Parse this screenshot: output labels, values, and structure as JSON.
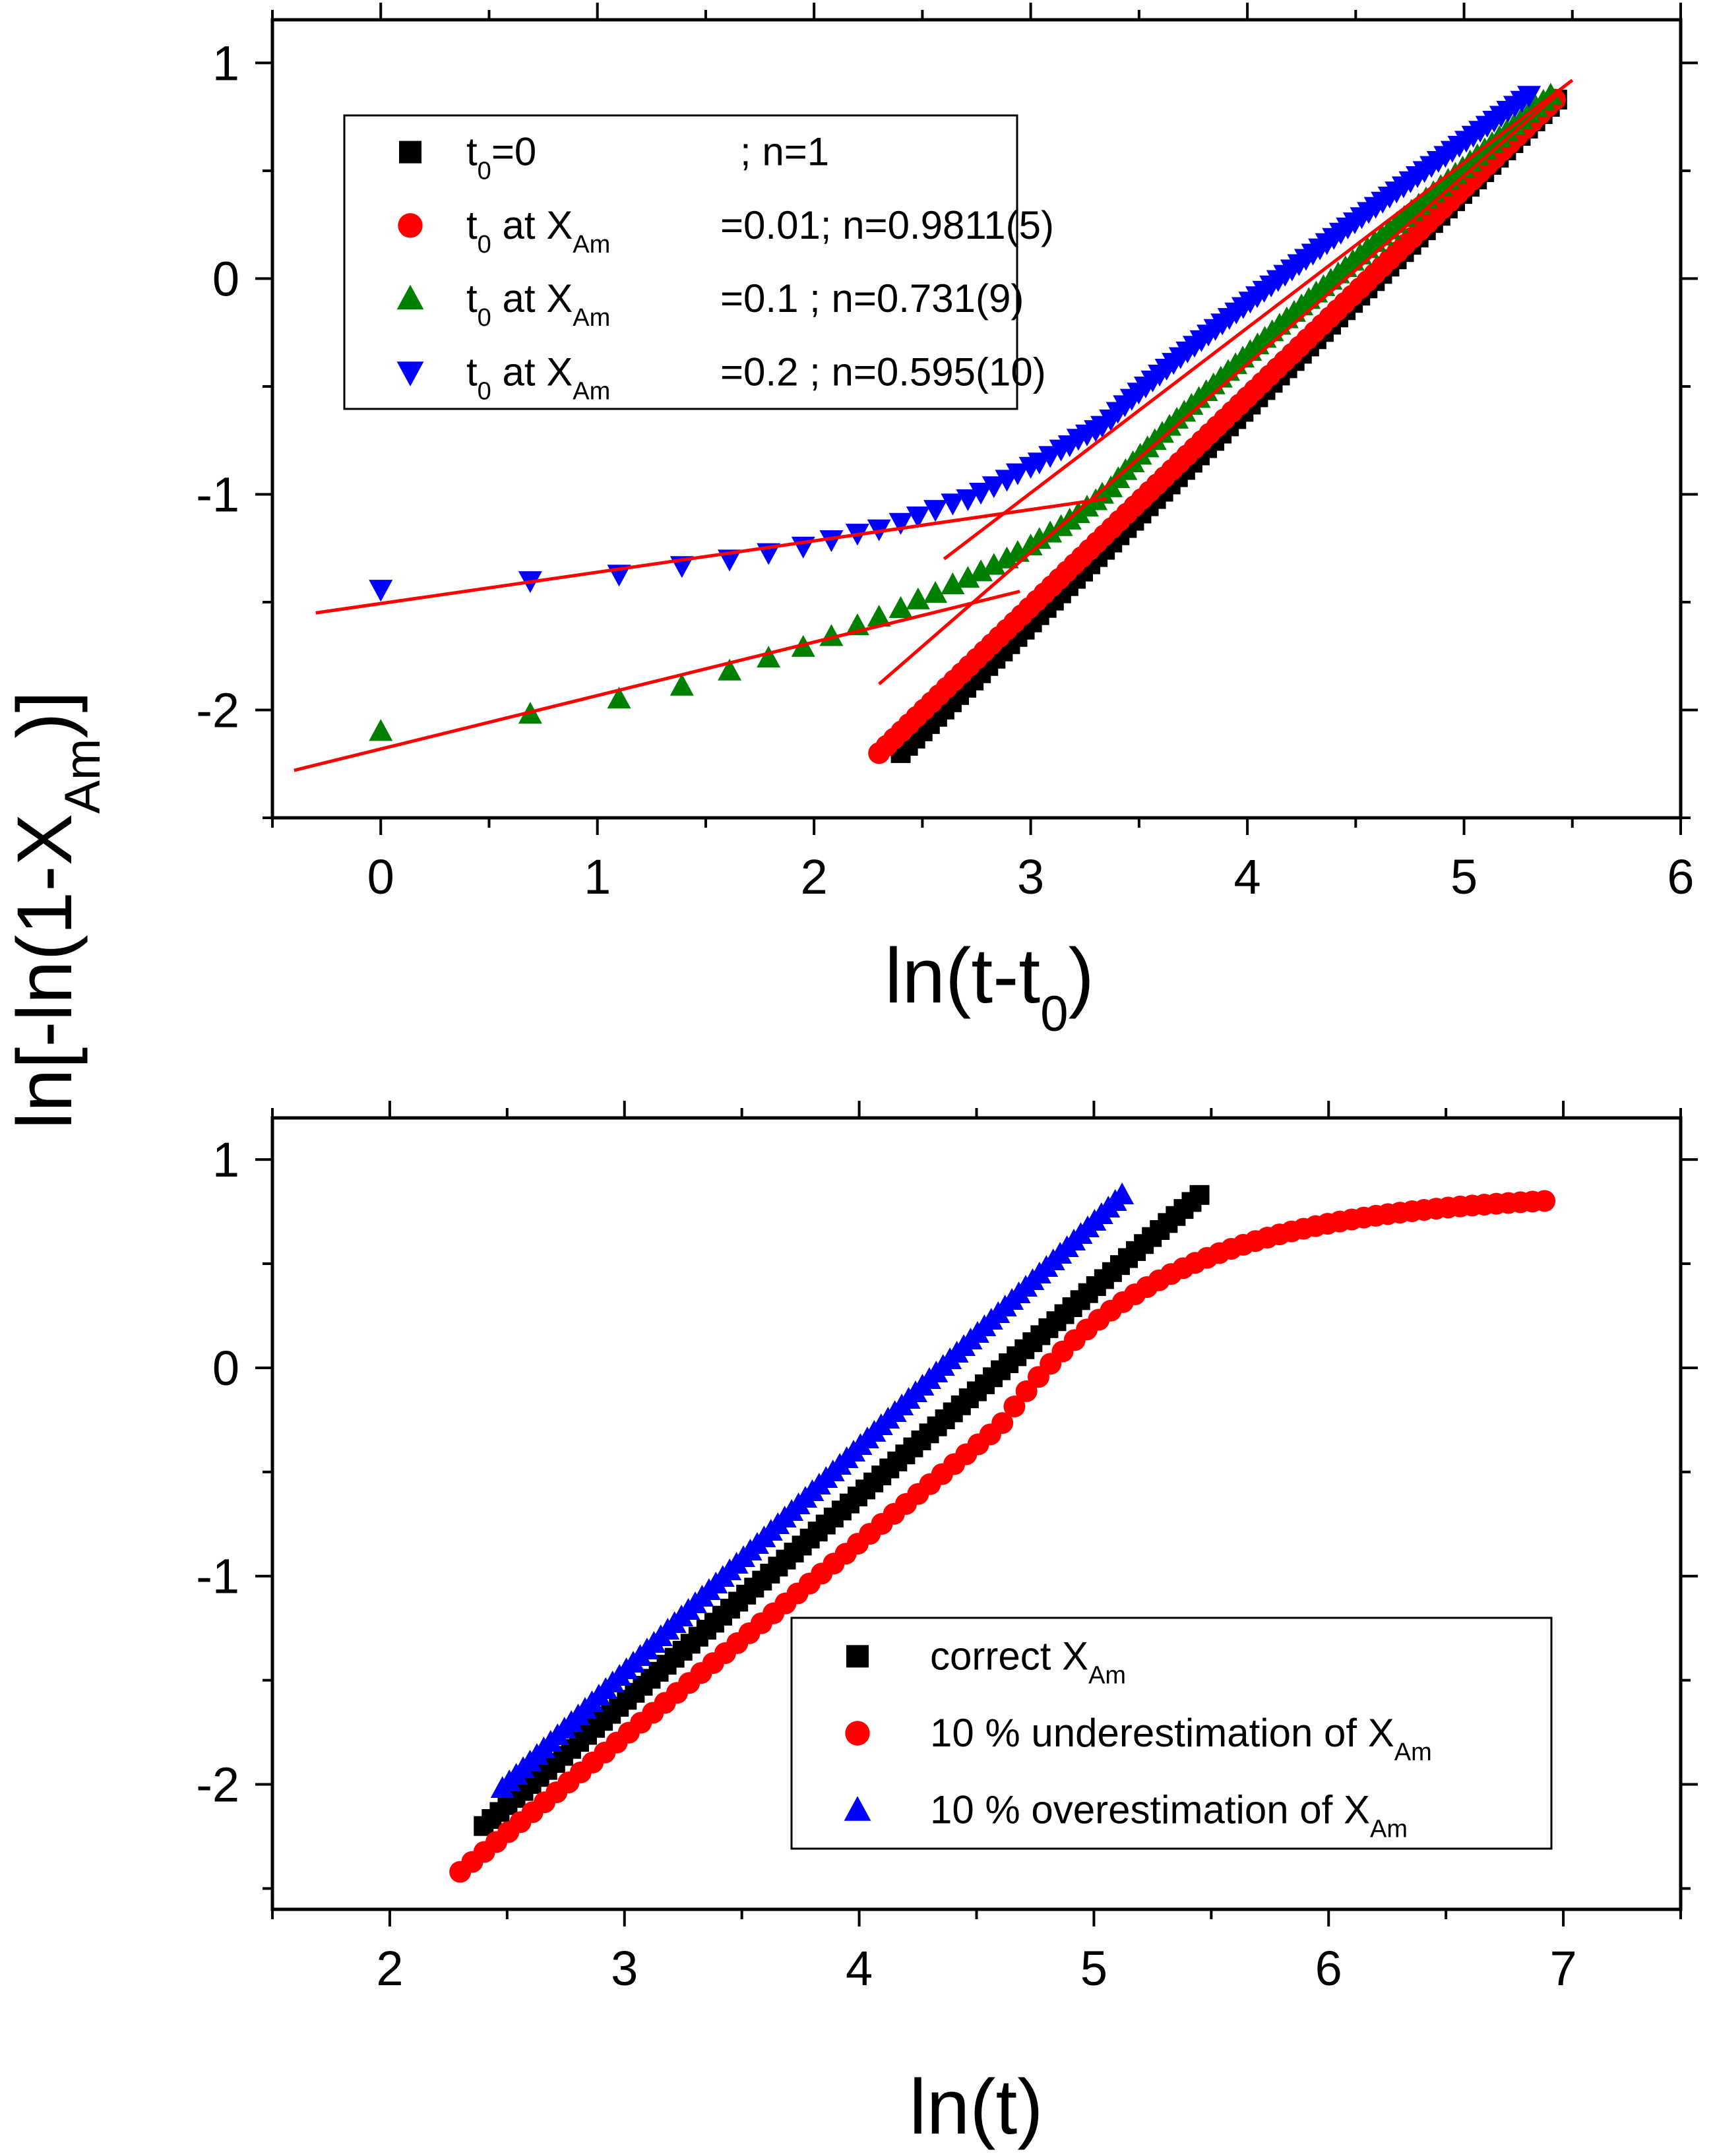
{
  "ylabel": {
    "pre": "ln[-ln(1-X",
    "sub": "Am",
    "post": ")]"
  },
  "chart_data": [
    {
      "type": "scatter",
      "xlabel": {
        "pre": "ln(t-t",
        "sub": "0",
        "post": ")"
      },
      "xlim": [
        -0.5,
        6
      ],
      "ylim": [
        -2.5,
        1.2
      ],
      "xticks": [
        "0",
        "1",
        "2",
        "3",
        "4",
        "5",
        "6"
      ],
      "yticks": [
        "1",
        "0",
        "-1",
        "-2"
      ],
      "xtick_values": [
        0,
        1,
        2,
        3,
        4,
        5,
        6
      ],
      "ytick_values": [
        1,
        0,
        -1,
        -2
      ],
      "legend_position": "top-left",
      "series": [
        {
          "color": "#000000",
          "marker": "square",
          "legend": {
            "p1": "t",
            "s1": "0",
            "p2": "=0",
            "p3": "; n=1"
          },
          "x_start": 2.4,
          "x_end": 5.43,
          "y_start": -2.2,
          "y_end": 0.83
        },
        {
          "color": "#ff0000",
          "marker": "circle",
          "legend": {
            "p1": "t",
            "s1": "0",
            "p2": " at X",
            "s2": "Am",
            "p3": "=0.01; n=0.9811(5)"
          },
          "x_start": 2.3,
          "x_end": 5.42,
          "y_start": -2.2,
          "y_end": 0.83
        },
        {
          "color": "#008000",
          "marker": "triangle-up",
          "legend": {
            "p1": "t",
            "s1": "0",
            "p2": " at X",
            "s2": "Am",
            "p3": "=0.1  ; n=0.731(9)"
          },
          "points": [
            [
              0,
              -2.1
            ],
            [
              0.69,
              -2.02
            ],
            [
              1.1,
              -1.95
            ],
            [
              1.39,
              -1.89
            ],
            [
              1.61,
              -1.82
            ],
            [
              1.79,
              -1.76
            ],
            [
              1.95,
              -1.71
            ],
            [
              2.08,
              -1.66
            ],
            [
              2.2,
              -1.61
            ],
            [
              2.3,
              -1.57
            ],
            [
              2.4,
              -1.53
            ],
            [
              2.48,
              -1.49
            ],
            [
              2.56,
              -1.46
            ],
            [
              2.64,
              -1.42
            ],
            [
              2.71,
              -1.39
            ],
            [
              2.77,
              -1.36
            ],
            [
              2.83,
              -1.33
            ],
            [
              2.89,
              -1.3
            ],
            [
              2.94,
              -1.27
            ],
            [
              3.0,
              -1.24
            ],
            [
              3.04,
              -1.21
            ],
            [
              3.09,
              -1.18
            ],
            [
              3.14,
              -1.15
            ],
            [
              3.18,
              -1.12
            ],
            [
              3.22,
              -1.09
            ],
            [
              3.26,
              -1.06
            ],
            [
              3.3,
              -1.03
            ],
            [
              3.33,
              -1.0
            ],
            [
              3.37,
              -0.97
            ]
          ],
          "continuous_to": [
            5.4,
            0.85
          ]
        },
        {
          "color": "#0000ff",
          "marker": "triangle-down",
          "legend": {
            "p1": "t",
            "s1": "0",
            "p2": " at X",
            "s2": "Am",
            "p3": "=0.2  ; n=0.595(10)"
          },
          "points": [
            [
              0,
              -1.44
            ],
            [
              0.69,
              -1.4
            ],
            [
              1.1,
              -1.37
            ],
            [
              1.39,
              -1.33
            ],
            [
              1.61,
              -1.3
            ],
            [
              1.79,
              -1.27
            ],
            [
              1.95,
              -1.24
            ],
            [
              2.08,
              -1.21
            ],
            [
              2.2,
              -1.18
            ],
            [
              2.3,
              -1.16
            ],
            [
              2.4,
              -1.13
            ],
            [
              2.48,
              -1.1
            ],
            [
              2.56,
              -1.07
            ],
            [
              2.64,
              -1.04
            ],
            [
              2.71,
              -1.02
            ],
            [
              2.77,
              -0.99
            ],
            [
              2.83,
              -0.96
            ],
            [
              2.89,
              -0.93
            ],
            [
              2.94,
              -0.9
            ],
            [
              3.0,
              -0.87
            ],
            [
              3.04,
              -0.85
            ],
            [
              3.09,
              -0.82
            ],
            [
              3.14,
              -0.79
            ],
            [
              3.18,
              -0.77
            ],
            [
              3.22,
              -0.74
            ],
            [
              3.26,
              -0.72
            ],
            [
              3.3,
              -0.7
            ],
            [
              3.33,
              -0.68
            ],
            [
              3.37,
              -0.65
            ]
          ],
          "continuous_to": [
            5.3,
            0.85
          ]
        }
      ],
      "fit_lines": [
        [
          [
            -0.3,
            -1.55
          ],
          [
            3.35,
            -1.02
          ]
        ],
        [
          [
            2.6,
            -1.3
          ],
          [
            5.5,
            0.92
          ]
        ],
        [
          [
            -0.4,
            -2.28
          ],
          [
            2.95,
            -1.45
          ]
        ],
        [
          [
            2.3,
            -1.88
          ],
          [
            5.45,
            0.87
          ]
        ]
      ]
    },
    {
      "type": "scatter",
      "xlabel": {
        "pre": "ln(t)",
        "sub": "",
        "post": ""
      },
      "xlim": [
        1.5,
        7.5
      ],
      "ylim": [
        -2.6,
        1.2
      ],
      "xticks": [
        "2",
        "3",
        "4",
        "5",
        "6",
        "7"
      ],
      "yticks": [
        "1",
        "0",
        "-1",
        "-2"
      ],
      "xtick_values": [
        2,
        3,
        4,
        5,
        6,
        7
      ],
      "ytick_values": [
        1,
        0,
        -1,
        -2
      ],
      "legend_position": "bottom-right",
      "series": [
        {
          "color": "#000000",
          "marker": "square",
          "legend": {
            "p1": "correct X",
            "s1": "Am",
            "p2": ""
          },
          "x_start": 2.4,
          "x_end": 5.45,
          "y_start": -2.2,
          "y_end": 0.83
        },
        {
          "color": "#ff0000",
          "marker": "circle",
          "legend": {
            "p1": "10 % underestimation of X",
            "s1": "Am",
            "p2": ""
          },
          "x_start": 2.3,
          "x_end": 6.92,
          "y_start": -2.42,
          "y_end": 0.84
        },
        {
          "color": "#0000ff",
          "marker": "triangle-up",
          "legend": {
            "p1": "10 % overestimation of X",
            "s1": "Am",
            "p2": ""
          },
          "x_start": 2.48,
          "x_end": 5.12,
          "y_start": -2.02,
          "y_end": 0.83
        }
      ]
    }
  ]
}
